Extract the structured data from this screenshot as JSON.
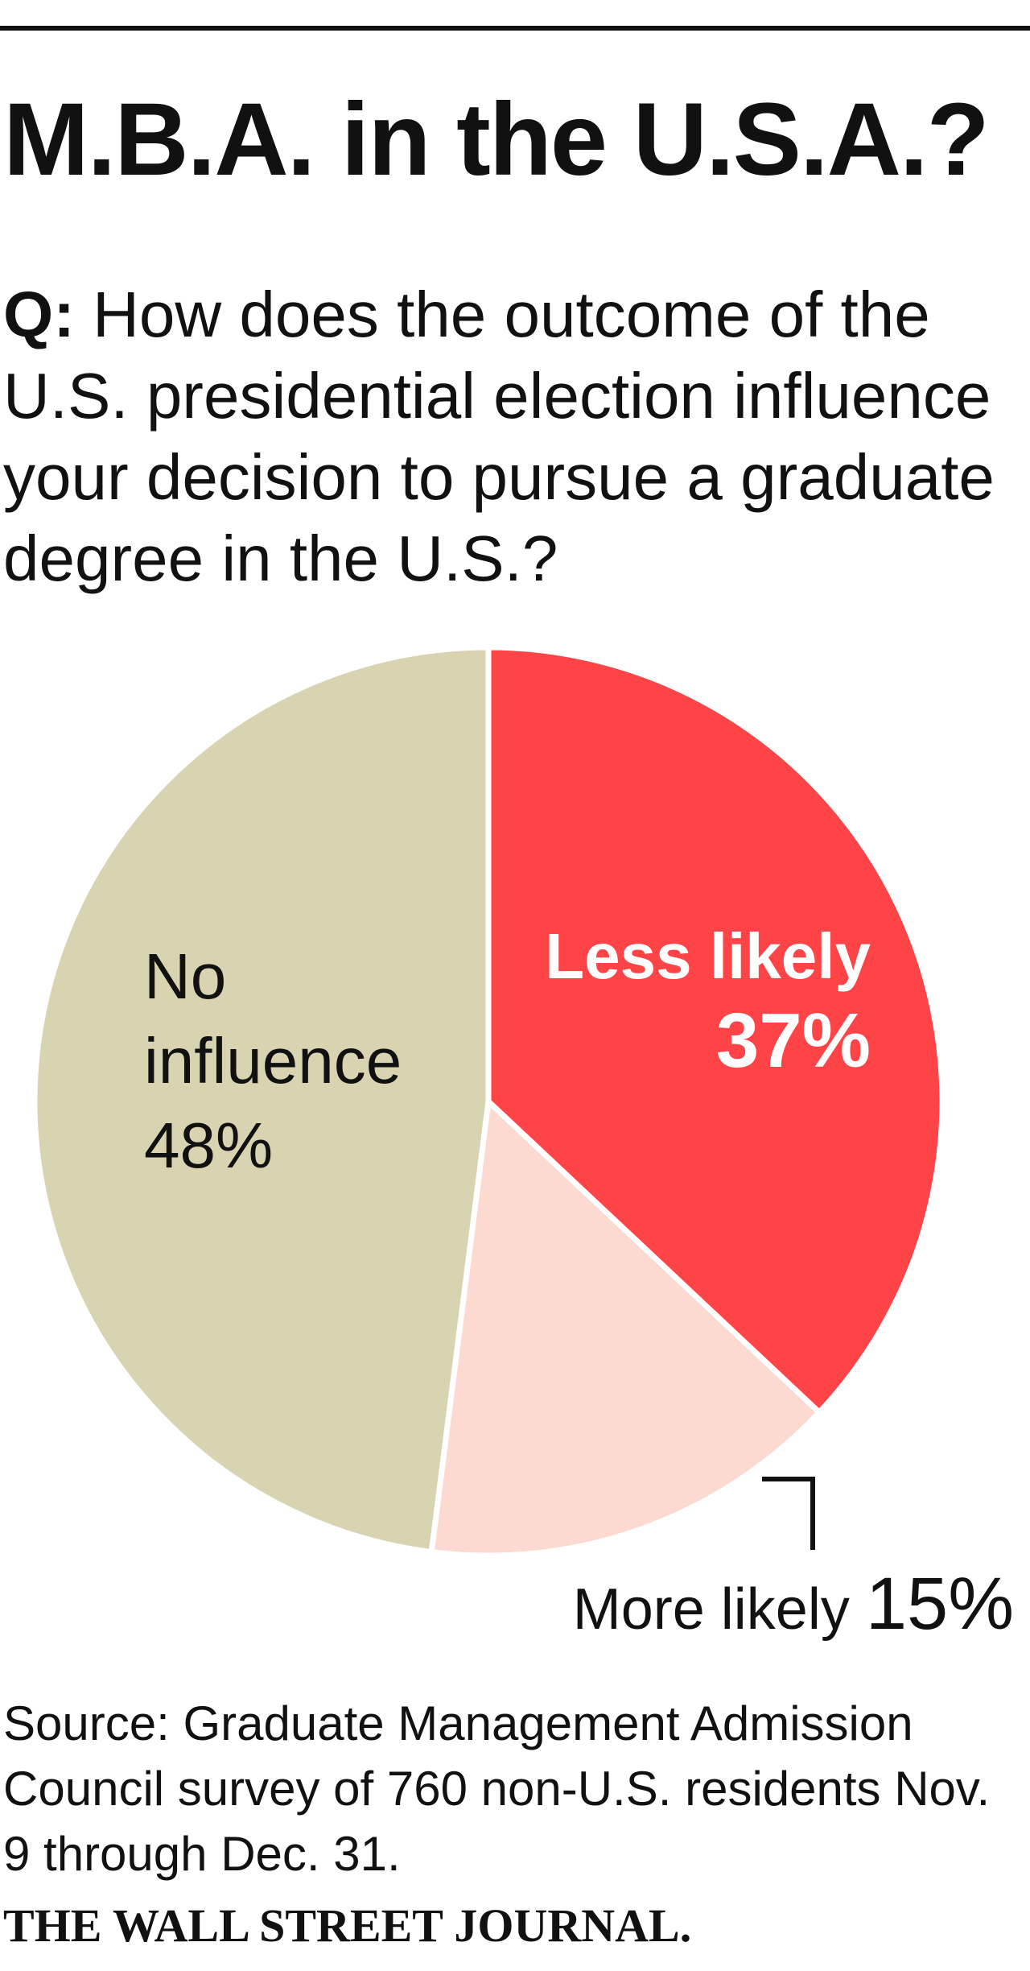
{
  "chart_data": {
    "type": "pie",
    "title": "M.B.A. in the U.S.A.?",
    "subtitle_prefix": "Q:",
    "subtitle": "How does the outcome of the U.S. presidential election influence your decision to pursue a graduate degree in the U.S.?",
    "categories": [
      "Less likely",
      "More likely",
      "No influence"
    ],
    "values": [
      37,
      15,
      48
    ],
    "value_labels": [
      "37%",
      "15%",
      "48%"
    ],
    "colors": [
      "#ff4447",
      "#fcd9d1",
      "#d8d3b1"
    ],
    "source": "Source: Graduate Management Admission Council survey of 760 non-U.S. residents Nov. 9 through Dec. 31.",
    "credit": "THE WALL STREET JOURNAL."
  }
}
